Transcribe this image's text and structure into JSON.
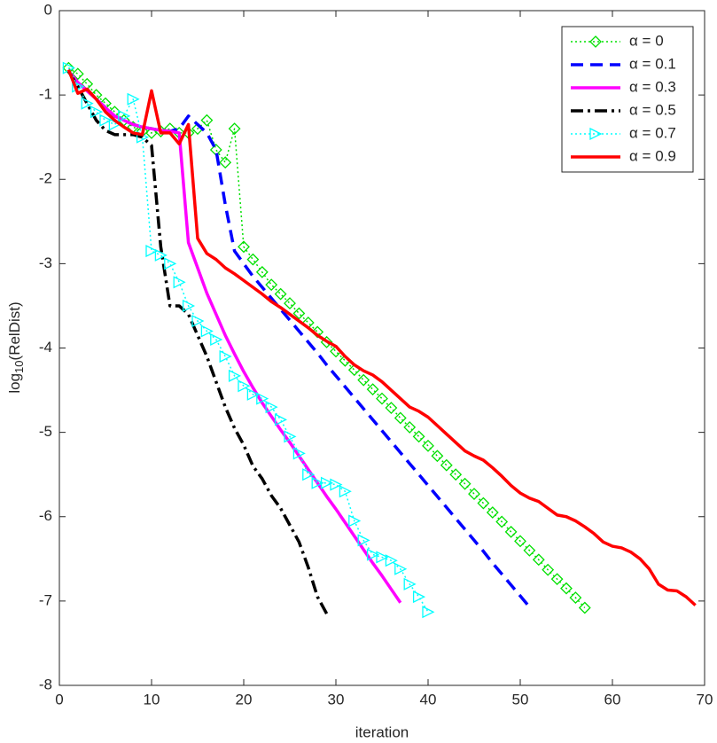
{
  "chart_data": {
    "type": "line",
    "x_label": "iteration",
    "y_label_parts": [
      "log",
      "10",
      "(RelDist)"
    ],
    "xlim": [
      0,
      70
    ],
    "xticks": [
      0,
      10,
      20,
      30,
      40,
      50,
      60,
      70
    ],
    "ylim": [
      -8,
      0
    ],
    "yticks": [
      -8,
      -7,
      -6,
      -5,
      -4,
      -3,
      -2,
      -1,
      0
    ],
    "legend": "top-right",
    "series": [
      {
        "name": "α = 0",
        "color": "#00e000",
        "dash": "dotted",
        "marker": "diamond",
        "x": [
          1,
          2,
          3,
          4,
          5,
          6,
          7,
          8,
          9,
          10,
          11,
          12,
          13,
          14,
          15,
          16,
          17,
          18,
          19,
          20,
          21,
          22,
          23,
          24,
          25,
          26,
          27,
          28,
          29,
          30,
          31,
          32,
          33,
          34,
          35,
          36,
          37,
          38,
          39,
          40,
          41,
          42,
          43,
          44,
          45,
          46,
          47,
          48,
          49,
          50,
          51,
          52,
          53,
          54,
          55,
          56,
          57
        ],
        "values": [
          -0.68,
          -0.75,
          -0.87,
          -1.0,
          -1.1,
          -1.2,
          -1.3,
          -1.38,
          -1.43,
          -1.45,
          -1.43,
          -1.4,
          -1.45,
          -1.45,
          -1.4,
          -1.3,
          -1.65,
          -1.8,
          -1.4,
          -2.8,
          -2.95,
          -3.1,
          -3.25,
          -3.36,
          -3.47,
          -3.59,
          -3.7,
          -3.81,
          -3.93,
          -4.04,
          -4.15,
          -4.26,
          -4.38,
          -4.49,
          -4.6,
          -4.71,
          -4.83,
          -4.94,
          -5.05,
          -5.16,
          -5.28,
          -5.39,
          -5.5,
          -5.61,
          -5.73,
          -5.84,
          -5.95,
          -6.06,
          -6.18,
          -6.29,
          -6.4,
          -6.51,
          -6.63,
          -6.74,
          -6.85,
          -6.96,
          -7.08
        ]
      },
      {
        "name": "α = 0.1",
        "color": "#0000ff",
        "dash": "dashed",
        "marker": "none",
        "x": [
          1,
          2,
          3,
          4,
          5,
          6,
          7,
          8,
          9,
          10,
          11,
          12,
          13,
          14,
          15,
          16,
          17,
          18,
          19,
          20,
          21,
          22,
          23,
          24,
          25,
          26,
          27,
          28,
          29,
          30,
          31,
          32,
          33,
          34,
          35,
          36,
          37,
          38,
          39,
          40,
          41,
          42,
          43,
          44,
          45,
          46,
          47,
          48,
          49,
          50,
          51
        ],
        "values": [
          -0.72,
          -0.85,
          -0.95,
          -1.05,
          -1.15,
          -1.25,
          -1.3,
          -1.35,
          -1.38,
          -1.4,
          -1.42,
          -1.43,
          -1.4,
          -1.25,
          -1.35,
          -1.45,
          -1.65,
          -2.3,
          -2.85,
          -3.0,
          -3.15,
          -3.28,
          -3.41,
          -3.54,
          -3.67,
          -3.8,
          -3.93,
          -4.06,
          -4.2,
          -4.33,
          -4.46,
          -4.59,
          -4.72,
          -4.85,
          -4.98,
          -5.11,
          -5.24,
          -5.37,
          -5.5,
          -5.63,
          -5.76,
          -5.89,
          -6.02,
          -6.15,
          -6.28,
          -6.41,
          -6.55,
          -6.68,
          -6.81,
          -6.94,
          -7.07
        ]
      },
      {
        "name": "α = 0.3",
        "color": "#ff00ff",
        "dash": "solid",
        "marker": "none",
        "x": [
          1,
          2,
          3,
          4,
          5,
          6,
          7,
          8,
          9,
          10,
          11,
          12,
          13,
          14,
          15,
          16,
          17,
          18,
          19,
          20,
          21,
          22,
          23,
          24,
          25,
          26,
          27,
          28,
          29,
          30,
          31,
          32,
          33,
          34,
          35,
          36,
          37
        ],
        "values": [
          -0.72,
          -0.85,
          -0.95,
          -1.05,
          -1.15,
          -1.25,
          -1.3,
          -1.35,
          -1.38,
          -1.4,
          -1.42,
          -1.43,
          -1.45,
          -2.75,
          -3.05,
          -3.35,
          -3.6,
          -3.85,
          -4.07,
          -4.28,
          -4.47,
          -4.65,
          -4.81,
          -4.97,
          -5.12,
          -5.28,
          -5.44,
          -5.6,
          -5.76,
          -5.91,
          -6.07,
          -6.23,
          -6.39,
          -6.55,
          -6.7,
          -6.86,
          -7.02
        ]
      },
      {
        "name": "α = 0.5",
        "color": "#000000",
        "dash": "dashdot",
        "marker": "none",
        "x": [
          1,
          2,
          3,
          4,
          5,
          6,
          7,
          8,
          9,
          10,
          11,
          12,
          13,
          14,
          15,
          16,
          17,
          18,
          19,
          20,
          21,
          22,
          23,
          24,
          25,
          26,
          27,
          28,
          29
        ],
        "values": [
          -0.72,
          -0.9,
          -1.1,
          -1.3,
          -1.42,
          -1.47,
          -1.47,
          -1.47,
          -1.5,
          -1.6,
          -2.8,
          -3.5,
          -3.5,
          -3.6,
          -3.85,
          -4.1,
          -4.4,
          -4.7,
          -4.95,
          -5.15,
          -5.4,
          -5.55,
          -5.75,
          -5.9,
          -6.1,
          -6.3,
          -6.6,
          -6.95,
          -7.15
        ]
      },
      {
        "name": "α = 0.7",
        "color": "#00ffff",
        "dash": "dotted",
        "marker": "triangle-right",
        "x": [
          1,
          2,
          3,
          4,
          5,
          6,
          7,
          8,
          9,
          10,
          11,
          12,
          13,
          14,
          15,
          16,
          17,
          18,
          19,
          20,
          21,
          22,
          23,
          24,
          25,
          26,
          27,
          28,
          29,
          30,
          31,
          32,
          33,
          34,
          35,
          36,
          37,
          38,
          39,
          40
        ],
        "values": [
          -0.68,
          -0.9,
          -1.1,
          -1.2,
          -1.3,
          -1.35,
          -1.25,
          -1.05,
          -1.5,
          -2.85,
          -2.9,
          -3.0,
          -3.22,
          -3.5,
          -3.68,
          -3.8,
          -3.9,
          -4.1,
          -4.33,
          -4.45,
          -4.55,
          -4.6,
          -4.7,
          -4.85,
          -5.05,
          -5.25,
          -5.5,
          -5.6,
          -5.6,
          -5.62,
          -5.7,
          -6.05,
          -6.28,
          -6.45,
          -6.48,
          -6.52,
          -6.62,
          -6.8,
          -6.95,
          -7.13
        ]
      },
      {
        "name": "α = 0.9",
        "color": "#ff0000",
        "dash": "solid",
        "marker": "none",
        "x": [
          1,
          2,
          3,
          4,
          5,
          6,
          7,
          8,
          9,
          10,
          11,
          12,
          13,
          14,
          15,
          16,
          17,
          18,
          19,
          20,
          21,
          22,
          23,
          24,
          25,
          26,
          27,
          28,
          29,
          30,
          31,
          32,
          33,
          34,
          35,
          36,
          37,
          38,
          39,
          40,
          41,
          42,
          43,
          44,
          45,
          46,
          47,
          48,
          49,
          50,
          51,
          52,
          53,
          54,
          55,
          56,
          57,
          58,
          59,
          60,
          61,
          62,
          63,
          64,
          65,
          66,
          67,
          68,
          69
        ],
        "values": [
          -0.7,
          -0.98,
          -0.93,
          -1.05,
          -1.2,
          -1.3,
          -1.38,
          -1.45,
          -1.47,
          -0.95,
          -1.45,
          -1.45,
          -1.58,
          -1.35,
          -2.7,
          -2.88,
          -2.95,
          -3.05,
          -3.12,
          -3.2,
          -3.28,
          -3.36,
          -3.45,
          -3.52,
          -3.6,
          -3.68,
          -3.76,
          -3.85,
          -3.92,
          -3.98,
          -4.1,
          -4.2,
          -4.27,
          -4.32,
          -4.4,
          -4.5,
          -4.6,
          -4.7,
          -4.75,
          -4.82,
          -4.92,
          -5.02,
          -5.12,
          -5.22,
          -5.28,
          -5.33,
          -5.42,
          -5.52,
          -5.63,
          -5.72,
          -5.78,
          -5.82,
          -5.9,
          -5.98,
          -6.0,
          -6.05,
          -6.12,
          -6.2,
          -6.3,
          -6.35,
          -6.37,
          -6.42,
          -6.5,
          -6.62,
          -6.8,
          -6.87,
          -6.88,
          -6.95,
          -7.05
        ]
      }
    ]
  }
}
